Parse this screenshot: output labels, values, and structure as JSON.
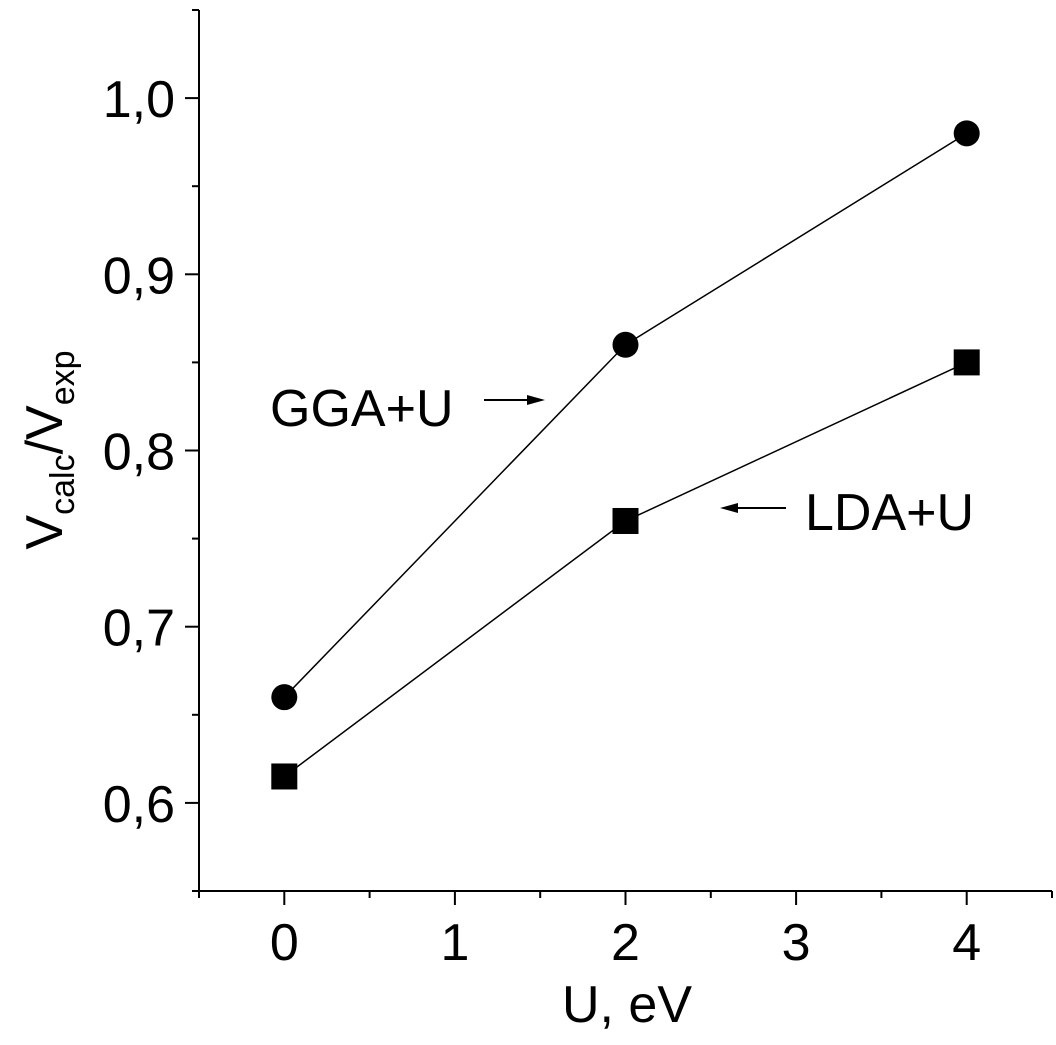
{
  "chart_data": {
    "type": "line",
    "xlabel": "U, eV",
    "ylabel": {
      "main1": "V",
      "sub1": "calc",
      "slash": "/",
      "main2": "V",
      "sub2": "exp"
    },
    "xlim": [
      -0.5,
      4.5
    ],
    "ylim": [
      0.55,
      1.05
    ],
    "x_ticks": [
      0,
      1,
      2,
      3,
      4
    ],
    "x_tick_labels": [
      "0",
      "1",
      "2",
      "3",
      "4"
    ],
    "y_ticks": [
      0.6,
      0.7,
      0.8,
      0.9,
      1.0
    ],
    "y_tick_labels": [
      "0,6",
      "0,7",
      "0,8",
      "0,9",
      "1,0"
    ],
    "grid": false,
    "series": [
      {
        "name": "GGA+U",
        "marker": "circle",
        "x": [
          0,
          2,
          4
        ],
        "y": [
          0.66,
          0.86,
          0.98
        ]
      },
      {
        "name": "LDA+U",
        "marker": "square",
        "x": [
          0,
          2,
          4
        ],
        "y": [
          0.615,
          0.76,
          0.85
        ]
      }
    ],
    "colors": {
      "line": "#000000",
      "marker": "#000000"
    }
  }
}
